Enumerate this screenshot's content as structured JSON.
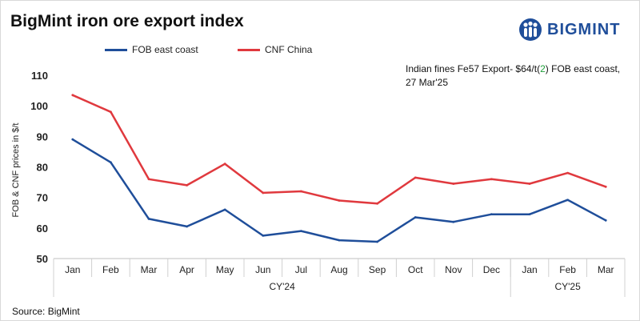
{
  "header": {
    "title": "BigMint iron ore export index",
    "logo_text": "BIGMINT"
  },
  "annotation": {
    "prefix": "Indian fines Fe57 Export- $64/t(",
    "change": "2",
    "suffix": ") FOB east coast,",
    "line2": "27 Mar'25"
  },
  "footer": {
    "source": "Source: BigMint"
  },
  "colors": {
    "fob": "#1f4e9a",
    "cnf": "#e0393e",
    "highlight": "#1e9e3a"
  },
  "chart_data": {
    "type": "line",
    "categories": [
      "Jan",
      "Feb",
      "Mar",
      "Apr",
      "May",
      "Jun",
      "Jul",
      "Aug",
      "Sep",
      "Oct",
      "Nov",
      "Dec",
      "Jan",
      "Feb",
      "Mar"
    ],
    "groups": [
      {
        "label": "CY'24",
        "count": 12
      },
      {
        "label": "CY'25",
        "count": 3
      }
    ],
    "series": [
      {
        "name": "FOB east coast",
        "color": "#1f4e9a",
        "values": [
          89,
          81.5,
          63,
          60.5,
          66,
          57.5,
          59,
          56,
          55.5,
          63.5,
          62,
          64.5,
          64.5,
          69.2,
          62.5
        ]
      },
      {
        "name": "CNF China",
        "color": "#e0393e",
        "values": [
          103.5,
          98,
          76,
          74,
          81,
          71.5,
          72,
          69,
          68,
          76.5,
          74.5,
          76,
          74.5,
          78,
          73.5
        ]
      }
    ],
    "ylabel": "FOB & CNF prices in $/t",
    "xlabel": "",
    "ylim": [
      50,
      110
    ],
    "yticks": [
      50,
      60,
      70,
      80,
      90,
      100,
      110
    ],
    "grid": false,
    "legend": "top"
  }
}
